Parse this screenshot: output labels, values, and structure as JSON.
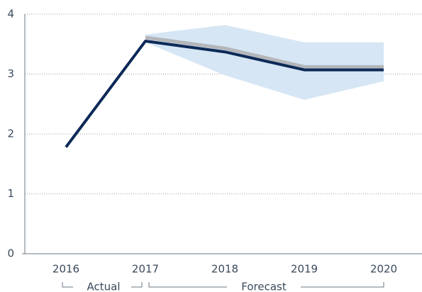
{
  "chart_data": {
    "type": "line",
    "categories": [
      "2016",
      "2017",
      "2018",
      "2019",
      "2020"
    ],
    "ylim": [
      0,
      4
    ],
    "yticks": [
      0,
      1,
      2,
      3,
      4
    ],
    "grid": true,
    "band": {
      "color": "#d6e6f4",
      "upper": [
        null,
        3.66,
        3.82,
        3.53,
        3.53
      ],
      "lower": [
        null,
        3.53,
        2.98,
        2.57,
        2.88
      ]
    },
    "series": [
      {
        "color": "#b3b6ba",
        "values": [
          null,
          3.61,
          3.43,
          3.12,
          3.12
        ]
      },
      {
        "color": "#0d2a57",
        "values": [
          1.78,
          3.55,
          3.37,
          3.07,
          3.07
        ]
      }
    ],
    "annotations": [
      "Actual",
      "Forecast"
    ]
  }
}
